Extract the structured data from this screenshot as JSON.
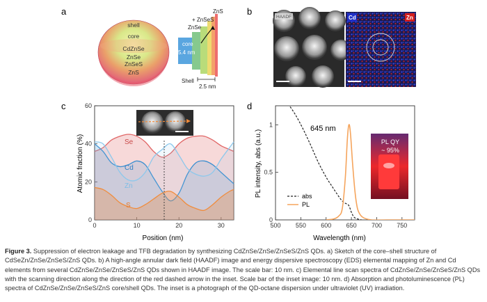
{
  "panels": {
    "a": {
      "letter": "a",
      "sphere_labels": [
        "shell",
        "core",
        "CdZnSe",
        "ZnSe",
        "ZnSeS",
        "ZnS"
      ],
      "band_labels": {
        "core": "core",
        "core_size": "5.4 nm",
        "znse": "ZnSe",
        "plus_znses": "+ ZnSeS",
        "zns": "ZnS",
        "shell": "Shell",
        "shell_size": "2.5 nm"
      }
    },
    "b": {
      "letter": "b",
      "haadf_label": "HAADF",
      "cd_label": "Cd",
      "zn_label": "Zn"
    },
    "c": {
      "letter": "c",
      "xlabel": "Position (nm)",
      "ylabel": "Atomic fraction (%)",
      "series_labels": [
        "Se",
        "Cd",
        "Zn",
        "S"
      ]
    },
    "d": {
      "letter": "d",
      "xlabel": "Wavelength (nm)",
      "ylabel": "PL intensity, abs (a.u.)",
      "peak_label": "645 nm",
      "legend": [
        "abs",
        "PL"
      ],
      "inset_title": "PL QY",
      "inset_value": "~ 95%"
    }
  },
  "colors": {
    "se": "#e06666",
    "cd": "#3b8fd0",
    "zn": "#8cc8ec",
    "s": "#f08c3c",
    "pl": "#f5a45c",
    "abs": "#222222",
    "cd_map": "#2a3fd6",
    "zn_map": "#d81e1e"
  },
  "chart_data": [
    {
      "type": "line",
      "panel": "c",
      "xlabel": "Position (nm)",
      "ylabel": "Atomic fraction (%)",
      "xlim": [
        0,
        33
      ],
      "ylim": [
        0,
        60
      ],
      "xticks": [
        0,
        10,
        20,
        30
      ],
      "yticks": [
        0,
        20,
        40,
        60
      ],
      "x": [
        0,
        2,
        4,
        6,
        8,
        10,
        12,
        14,
        16,
        18,
        20,
        22,
        24,
        26,
        28,
        30,
        32,
        33
      ],
      "series": [
        {
          "name": "Se",
          "values": [
            36,
            38,
            42,
            44,
            45,
            44,
            41,
            36,
            33,
            35,
            40,
            43,
            44,
            44,
            42,
            39,
            37,
            36
          ]
        },
        {
          "name": "Cd",
          "values": [
            40,
            36,
            30,
            28,
            29,
            31,
            29,
            22,
            15,
            10,
            14,
            24,
            30,
            31,
            29,
            25,
            21,
            19
          ]
        },
        {
          "name": "Zn",
          "values": [
            41,
            40,
            33,
            25,
            21,
            21,
            25,
            33,
            37,
            40,
            34,
            27,
            24,
            23,
            25,
            32,
            38,
            41
          ]
        },
        {
          "name": "S",
          "values": [
            17,
            16,
            13,
            9,
            7,
            6,
            8,
            11,
            14,
            15,
            12,
            8,
            6,
            5,
            8,
            12,
            15,
            16
          ]
        }
      ],
      "vline_x": 16.5
    },
    {
      "type": "line",
      "panel": "d",
      "xlabel": "Wavelength (nm)",
      "ylabel": "PL intensity, abs (a.u.)",
      "xlim": [
        500,
        775
      ],
      "ylim": [
        0,
        1.2
      ],
      "xticks": [
        500,
        550,
        600,
        650,
        700,
        750
      ],
      "yticks": [
        0,
        0.5,
        1
      ],
      "series": [
        {
          "name": "abs",
          "x": [
            525,
            540,
            555,
            570,
            585,
            600,
            612,
            622,
            630,
            636,
            640,
            645,
            650,
            655,
            662,
            670
          ],
          "values": [
            1.22,
            1.1,
            0.95,
            0.78,
            0.6,
            0.45,
            0.35,
            0.27,
            0.21,
            0.18,
            0.17,
            0.15,
            0.08,
            0.03,
            0.01,
            0.0
          ]
        },
        {
          "name": "PL",
          "x": [
            600,
            615,
            625,
            632,
            638,
            642,
            645,
            648,
            652,
            657,
            662,
            668,
            675,
            690,
            720,
            775
          ],
          "values": [
            0.0,
            0.01,
            0.04,
            0.12,
            0.45,
            0.85,
            1.0,
            0.92,
            0.62,
            0.3,
            0.12,
            0.05,
            0.02,
            0.0,
            0.0,
            0.0
          ]
        }
      ],
      "annotations": [
        "645 nm"
      ]
    }
  ],
  "caption": {
    "figure_label": "Figure 3.",
    "text": "Suppression of electron leakage and TFB degradation by synthesizing CdZnSe/ZnSe/ZnSeS/ZnS QDs. a) Sketch of the core–shell structure of CdSeZn/ZnSe/ZnSeS/ZnS QDs. b) A high-angle annular dark field (HAADF) image and energy dispersive spectroscopy (EDS) elemental mapping of Zn and Cd elements from several CdZnSe/ZnSe/ZnSeS/ZnS QDs shown in HAADF image. The scale bar: 10 nm. c) Elemental line scan spectra of CdZnSe/ZnSe/ZnSeS/ZnS QDs with the scanning direction along the direction of the red dashed arrow in the inset. Scale bar of the inset image: 10 nm. d) Absorption and photoluminescence (PL) spectra of CdZnSe/ZnSe/ZnSeS/ZnS core/shell QDs. The inset is a photograph of the QD-octane dispersion under ultraviolet (UV) irradiation."
  }
}
